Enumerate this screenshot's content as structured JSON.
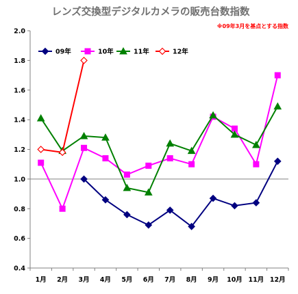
{
  "chart_data": {
    "type": "line",
    "title": "レンズ交換型デジタルカメラの販売台数指数",
    "note": "※09年3月を基点とする指数",
    "categories": [
      "1月",
      "2月",
      "3月",
      "4月",
      "5月",
      "6月",
      "7月",
      "8月",
      "9月",
      "10月",
      "11月",
      "12月"
    ],
    "ylim": [
      0.4,
      2.0
    ],
    "yticks": [
      "0.4",
      "0.6",
      "0.8",
      "1.0",
      "1.2",
      "1.4",
      "1.6",
      "1.8",
      "2.0"
    ],
    "reference_line": 1.0,
    "grid": false,
    "legend_position": "top-left",
    "series": [
      {
        "name": "09年",
        "color": "#000080",
        "marker": "diamond",
        "filled": true,
        "values": [
          null,
          null,
          1.0,
          0.86,
          0.76,
          0.69,
          0.79,
          0.68,
          0.87,
          0.82,
          0.84,
          1.12
        ]
      },
      {
        "name": "10年",
        "color": "#ff00ff",
        "marker": "square",
        "filled": true,
        "values": [
          1.11,
          0.8,
          1.21,
          1.14,
          1.03,
          1.09,
          1.14,
          1.1,
          1.42,
          1.34,
          1.1,
          1.7
        ]
      },
      {
        "name": "11年",
        "color": "#008000",
        "marker": "triangle",
        "filled": true,
        "values": [
          1.41,
          1.19,
          1.29,
          1.28,
          0.94,
          0.91,
          1.24,
          1.19,
          1.43,
          1.3,
          1.23,
          1.49
        ]
      },
      {
        "name": "12年",
        "color": "#ff0000",
        "marker": "diamond",
        "filled": false,
        "values": [
          1.2,
          1.18,
          1.8,
          null,
          null,
          null,
          null,
          null,
          null,
          null,
          null,
          null
        ]
      }
    ]
  }
}
